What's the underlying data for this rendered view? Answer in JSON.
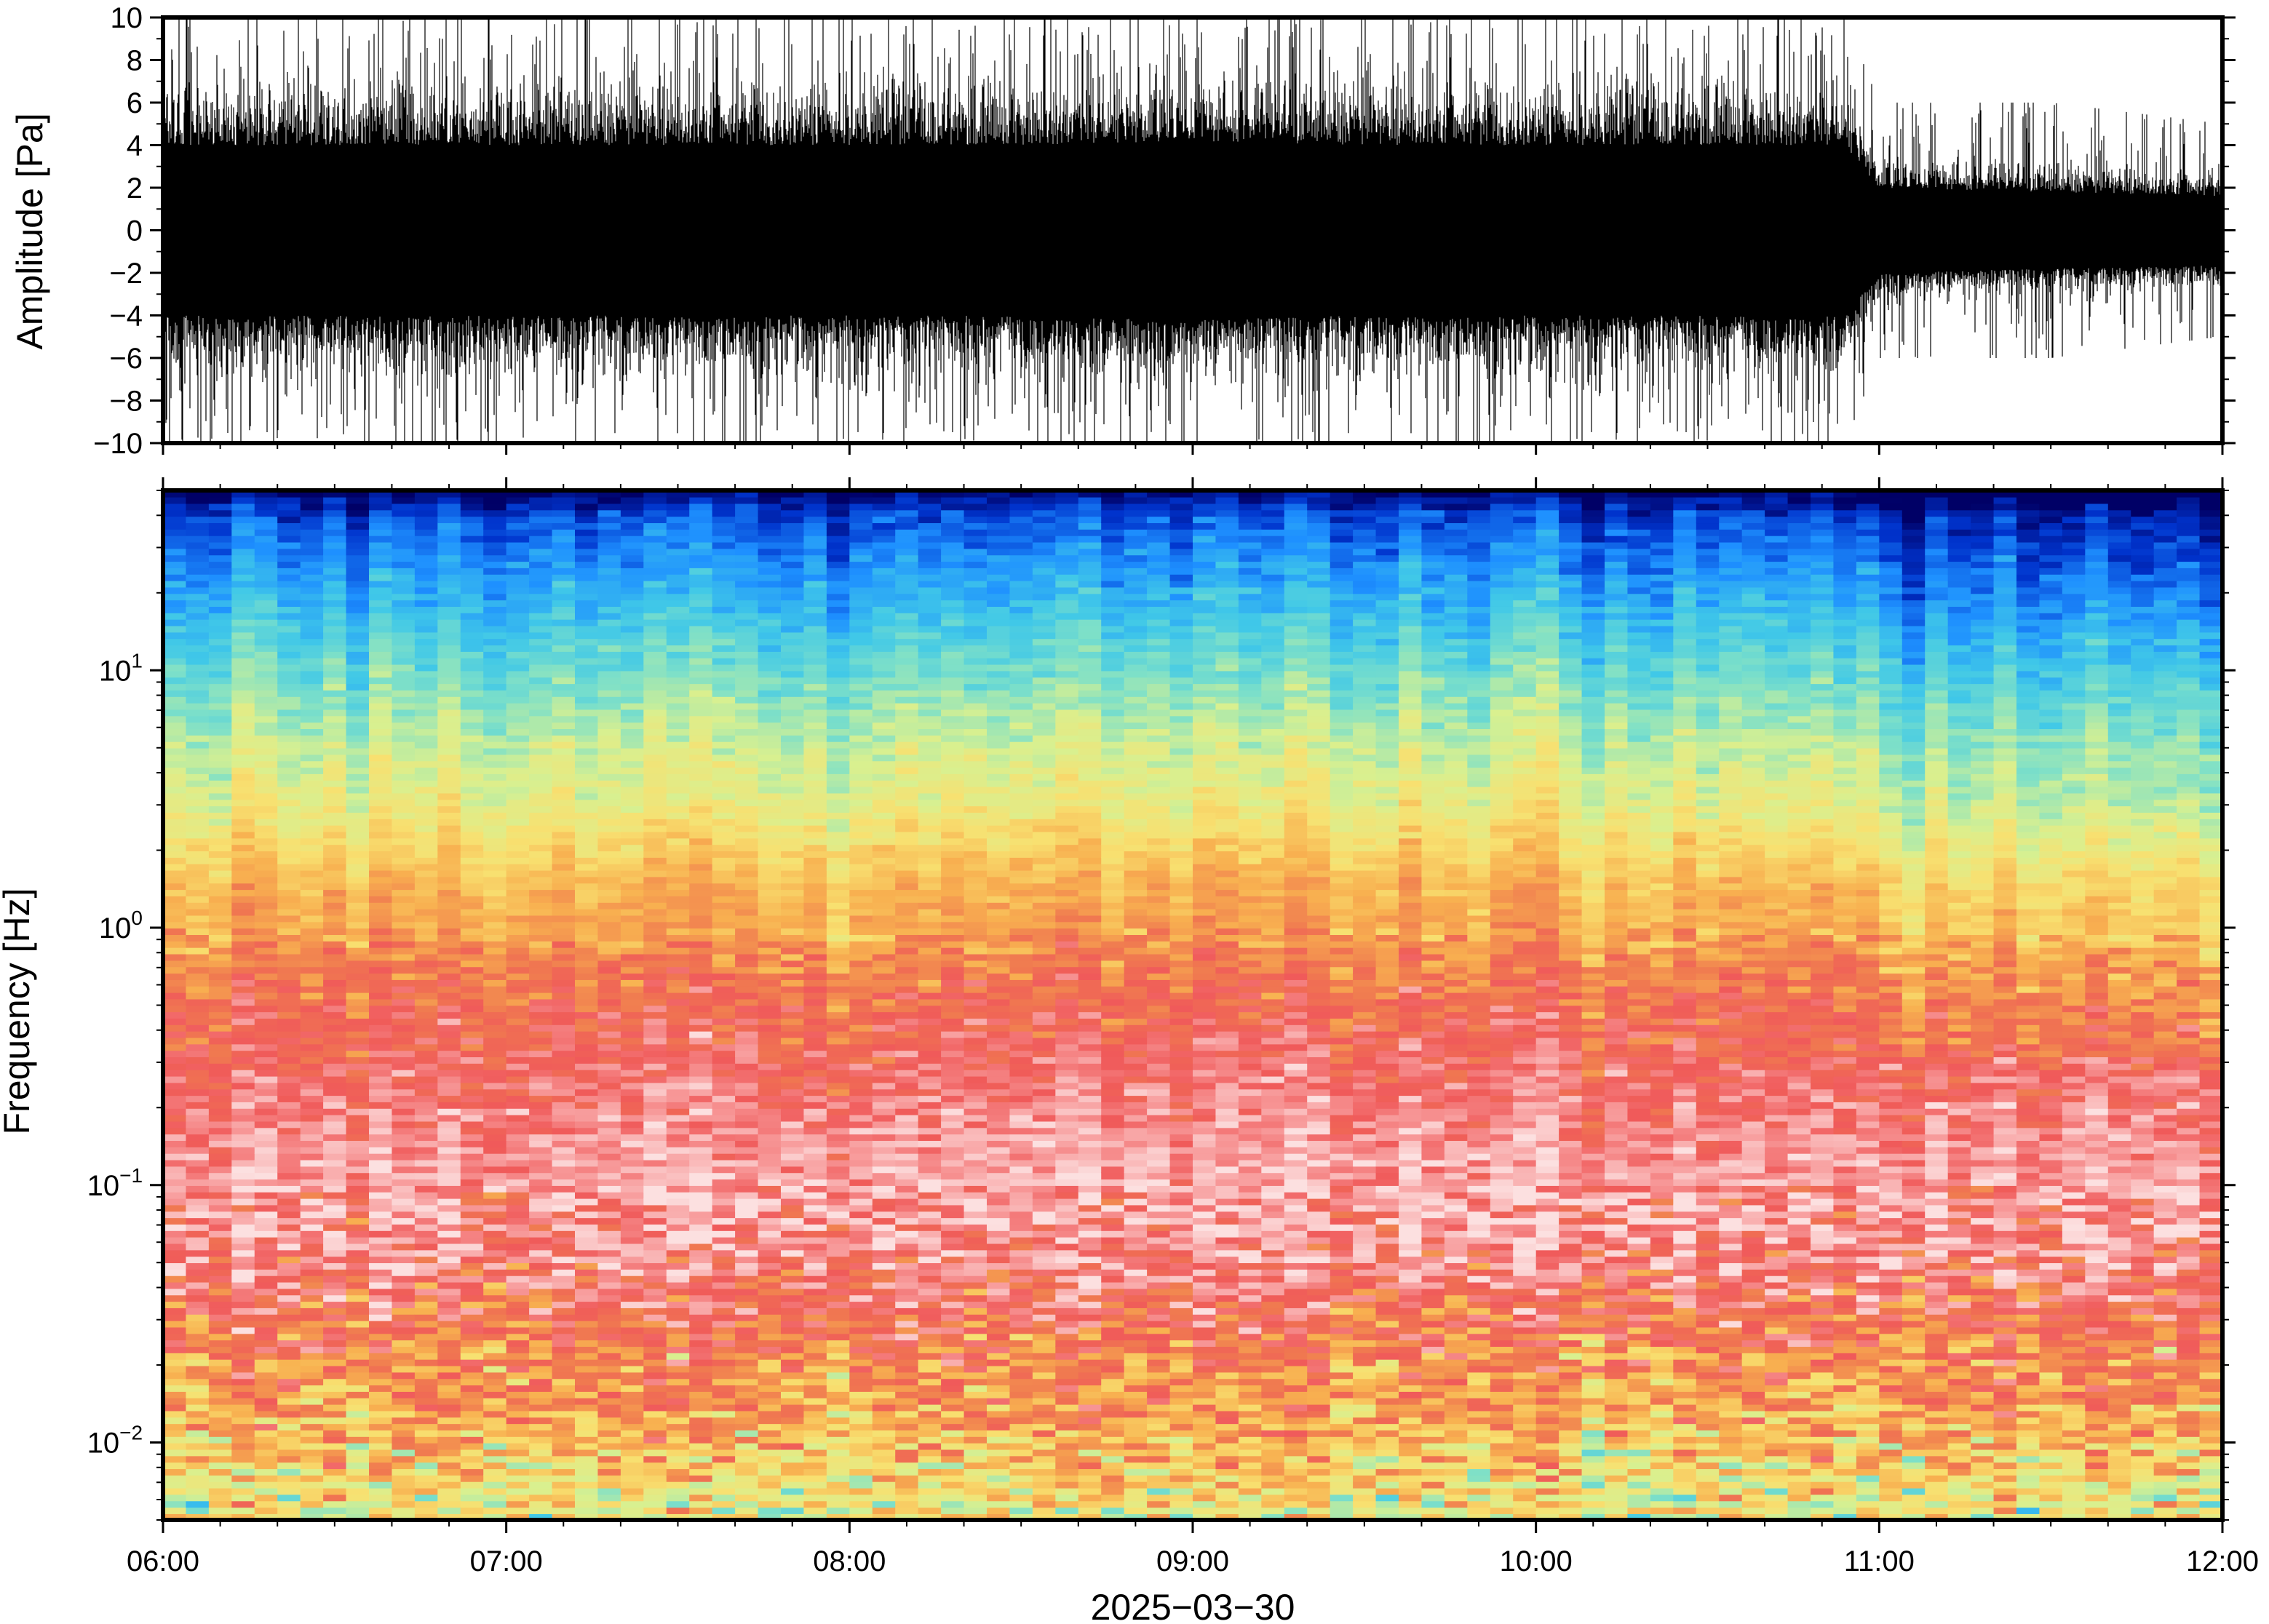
{
  "chart_data": [
    {
      "type": "line",
      "panel": "waveform",
      "ylabel": "Amplitude [Pa]",
      "ylim": [
        -10,
        10
      ],
      "yticks": [
        10,
        8,
        6,
        4,
        2,
        0,
        -2,
        -4,
        -6,
        -8,
        -10
      ],
      "ytick_labels": [
        "10",
        "8",
        "6",
        "4",
        "2",
        "0",
        "−2",
        "−4",
        "−6",
        "−8",
        "−10"
      ],
      "x_range": [
        "06:00",
        "12:00"
      ],
      "envelope": {
        "x_hours": [
          6.0,
          6.5,
          7.0,
          7.5,
          8.0,
          8.5,
          9.0,
          9.5,
          10.0,
          10.5,
          10.9,
          11.0,
          11.5,
          12.0
        ],
        "typical_amplitude": [
          4,
          4,
          4,
          4,
          4,
          4,
          4.2,
          4,
          4,
          4,
          4,
          2,
          1.8,
          1.6
        ],
        "peak_amplitude": [
          10,
          10,
          10,
          10,
          10,
          10,
          10,
          10,
          10,
          10,
          10,
          6,
          6,
          5
        ]
      },
      "grid": false
    },
    {
      "type": "heatmap",
      "panel": "spectrogram",
      "ylabel": "Frequency [Hz]",
      "xlabel": "2025−03−30",
      "yscale": "log",
      "ylim": [
        0.005,
        50
      ],
      "yticks": [
        {
          "value": 10,
          "base": "10",
          "exp": "1"
        },
        {
          "value": 1,
          "base": "10",
          "exp": "0"
        },
        {
          "value": 0.1,
          "base": "10",
          "exp": "−1"
        },
        {
          "value": 0.01,
          "base": "10",
          "exp": "−2"
        }
      ],
      "xticks": [
        "06:00",
        "07:00",
        "08:00",
        "09:00",
        "10:00",
        "11:00",
        "12:00"
      ],
      "x_range": [
        "06:00",
        "12:00"
      ],
      "colormap": [
        "#000066",
        "#0033cc",
        "#1e90ff",
        "#40c8e8",
        "#7ee0c8",
        "#d8f090",
        "#f8e070",
        "#f8b050",
        "#f07a50",
        "#f05a5a",
        "#f8a0a0",
        "#fce0e0"
      ],
      "profile_by_frequency": {
        "freq_hz": [
          50,
          40,
          25,
          15,
          10,
          5,
          3,
          1.5,
          1.0,
          0.6,
          0.4,
          0.2,
          0.1,
          0.05,
          0.03,
          0.02,
          0.01,
          0.006
        ],
        "level": [
          0.0,
          0.12,
          0.2,
          0.28,
          0.35,
          0.45,
          0.5,
          0.62,
          0.66,
          0.75,
          0.8,
          0.87,
          0.93,
          0.88,
          0.78,
          0.7,
          0.62,
          0.52
        ]
      },
      "quieter_after": "11:00",
      "grid": false
    }
  ]
}
